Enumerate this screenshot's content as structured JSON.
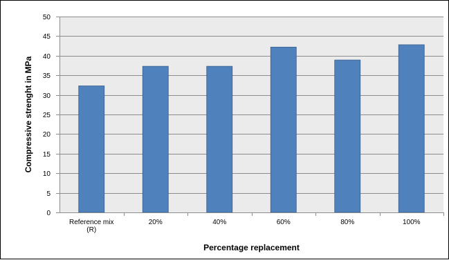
{
  "chart_data": {
    "type": "bar",
    "title": "",
    "xlabel": "Percentage replacement",
    "ylabel": "Compressive strenght in MPa",
    "categories": [
      "Reference mix (R)",
      "20%",
      "40%",
      "60%",
      "80%",
      "100%"
    ],
    "series": [
      {
        "values": [
          32.3,
          37.3,
          37.3,
          42.2,
          38.9,
          42.8
        ]
      }
    ],
    "ylim": [
      0,
      50
    ],
    "yticks": [
      "0",
      "5",
      "10",
      "15",
      "20",
      "25",
      "30",
      "35",
      "40",
      "45",
      "50"
    ],
    "grid": true,
    "legend": "none",
    "colors": {
      "bar": "#4F81BD",
      "bar_edge": "#385D8A",
      "plot_background": "#EBEBEB",
      "gridline": "#8C8C8C",
      "axis": "#8C8C8C"
    }
  }
}
